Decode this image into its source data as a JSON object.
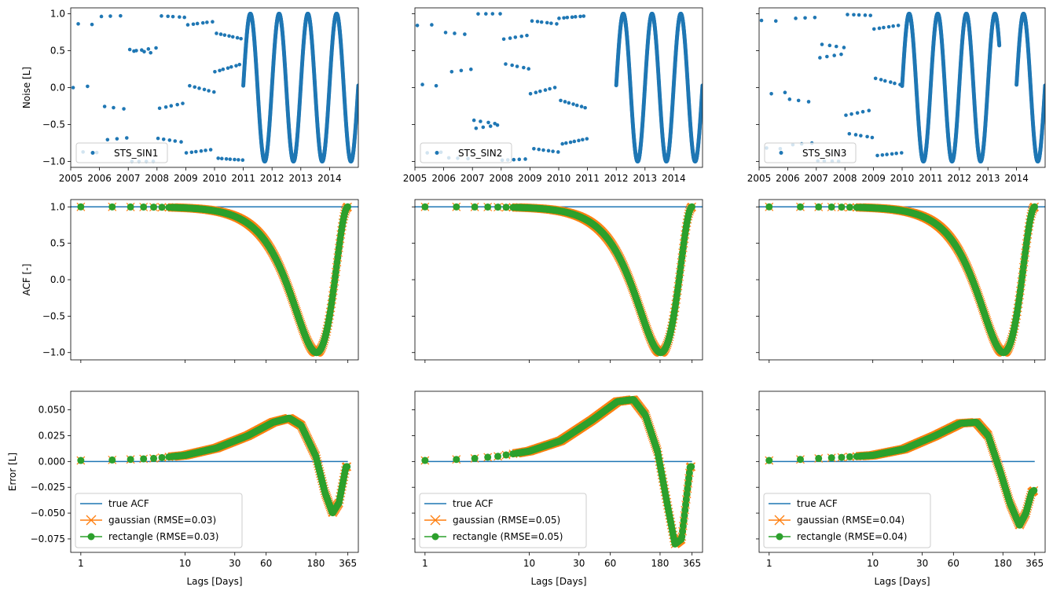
{
  "chart_data": {
    "type": "multi-panel",
    "rows": [
      {
        "row": "noise",
        "ylabel": "Noise [L]",
        "x_scale": "time",
        "x_ticks": [
          "2005",
          "2006",
          "2007",
          "2008",
          "2009",
          "2010",
          "2011",
          "2012",
          "2013",
          "2014"
        ],
        "xlim": [
          2005.0,
          2015.0
        ],
        "ylim": [
          -1.08,
          1.08
        ],
        "y_ticks": [
          "1.0",
          "0.5",
          "0.0",
          "−0.5",
          "−1.0"
        ],
        "y_tick_values": [
          1.0,
          0.5,
          0.0,
          -0.5,
          -1.0
        ],
        "panels": [
          {
            "legend": "STS_SIN1",
            "dense_start": 2011.0,
            "dense_end": 2015.0,
            "gaps": [],
            "sparse_years": [
              2005,
              2006,
              2007,
              2008,
              2009,
              2010
            ]
          },
          {
            "legend": "STS_SIN2",
            "dense_start": 2012.0,
            "dense_end": 2015.0,
            "gaps": [
              [
                2011.0,
                2012.0
              ]
            ],
            "sparse_years": [
              2005,
              2006,
              2007,
              2008,
              2009,
              2010
            ]
          },
          {
            "legend": "STS_SIN3",
            "dense_start": 2010.0,
            "dense_end": 2015.0,
            "gaps": [
              [
                2013.4,
                2014.0
              ]
            ],
            "sparse_years": [
              2005,
              2006,
              2007,
              2008,
              2009
            ]
          }
        ],
        "series_color": "#1f77b4",
        "period_days": 365
      },
      {
        "row": "acf",
        "ylabel": "ACF [-]",
        "x_scale": "log",
        "xlim": [
          0.8,
          460
        ],
        "ylim": [
          -1.1,
          1.1
        ],
        "y_ticks": [
          "1.0",
          "0.5",
          "0.0",
          "−0.5",
          "−1.0"
        ],
        "y_tick_values": [
          1.0,
          0.5,
          0.0,
          -0.5,
          -1.0
        ],
        "true_acf_value": 1.0,
        "minimum": {
          "x": 182,
          "y": -1.0
        }
      },
      {
        "row": "error",
        "ylabel": "Error [L]",
        "xlabel": "Lags [Days]",
        "x_scale": "log",
        "xlim": [
          0.8,
          460
        ],
        "x_ticks": [
          "1",
          "10",
          "30",
          "60",
          "180",
          "365"
        ],
        "x_tick_values": [
          1,
          10,
          30,
          60,
          180,
          365
        ],
        "ylim": [
          -0.088,
          0.068
        ],
        "y_ticks": [
          "0.050",
          "0.025",
          "0.000",
          "−0.025",
          "−0.050",
          "−0.075"
        ],
        "y_tick_values": [
          0.05,
          0.025,
          0.0,
          -0.025,
          -0.05,
          -0.075
        ],
        "panels": [
          {
            "legend": [
              "true ACF",
              "gaussian (RMSE=0.03)",
              "rectangle (RMSE=0.03)"
            ],
            "curve": [
              [
                1,
                0.001
              ],
              [
                2,
                0.0015
              ],
              [
                3,
                0.002
              ],
              [
                5,
                0.003
              ],
              [
                10,
                0.006
              ],
              [
                20,
                0.013
              ],
              [
                40,
                0.025
              ],
              [
                70,
                0.038
              ],
              [
                100,
                0.042
              ],
              [
                130,
                0.035
              ],
              [
                180,
                0.005
              ],
              [
                220,
                -0.03
              ],
              [
                260,
                -0.05
              ],
              [
                300,
                -0.04
              ],
              [
                350,
                -0.005
              ]
            ]
          },
          {
            "legend": [
              "true ACF",
              "gaussian (RMSE=0.05)",
              "rectangle (RMSE=0.05)"
            ],
            "curve": [
              [
                1,
                0.001
              ],
              [
                2,
                0.002
              ],
              [
                3,
                0.003
              ],
              [
                5,
                0.005
              ],
              [
                10,
                0.01
              ],
              [
                20,
                0.02
              ],
              [
                40,
                0.04
              ],
              [
                70,
                0.058
              ],
              [
                100,
                0.06
              ],
              [
                130,
                0.045
              ],
              [
                170,
                0.01
              ],
              [
                210,
                -0.04
              ],
              [
                250,
                -0.08
              ],
              [
                290,
                -0.075
              ],
              [
                350,
                -0.005
              ]
            ]
          },
          {
            "legend": [
              "true ACF",
              "gaussian (RMSE=0.04)",
              "rectangle (RMSE=0.04)"
            ],
            "curve": [
              [
                1,
                0.001
              ],
              [
                2,
                0.002
              ],
              [
                3,
                0.003
              ],
              [
                5,
                0.004
              ],
              [
                10,
                0.006
              ],
              [
                20,
                0.012
              ],
              [
                40,
                0.025
              ],
              [
                70,
                0.037
              ],
              [
                100,
                0.038
              ],
              [
                130,
                0.025
              ],
              [
                170,
                -0.01
              ],
              [
                210,
                -0.04
              ],
              [
                260,
                -0.062
              ],
              [
                300,
                -0.05
              ],
              [
                340,
                -0.03
              ],
              [
                360,
                -0.028
              ]
            ]
          }
        ]
      }
    ],
    "colors": {
      "true_acf": "#1f77b4",
      "gaussian": "#ff7f0e",
      "rectangle": "#2ca02c",
      "noise": "#1f77b4"
    }
  }
}
